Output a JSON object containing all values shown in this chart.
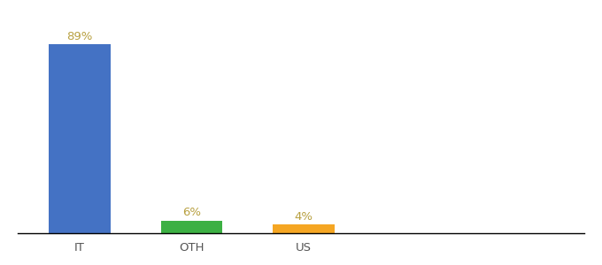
{
  "categories": [
    "IT",
    "OTH",
    "US"
  ],
  "values": [
    89,
    6,
    4
  ],
  "labels": [
    "89%",
    "6%",
    "4%"
  ],
  "bar_colors": [
    "#4472c4",
    "#3cb043",
    "#f5a623"
  ],
  "background_color": "#ffffff",
  "ylim": [
    0,
    100
  ],
  "bar_width": 0.55,
  "label_fontsize": 9.5,
  "tick_fontsize": 9.5,
  "label_color": "#b8a040",
  "tick_color": "#555555"
}
